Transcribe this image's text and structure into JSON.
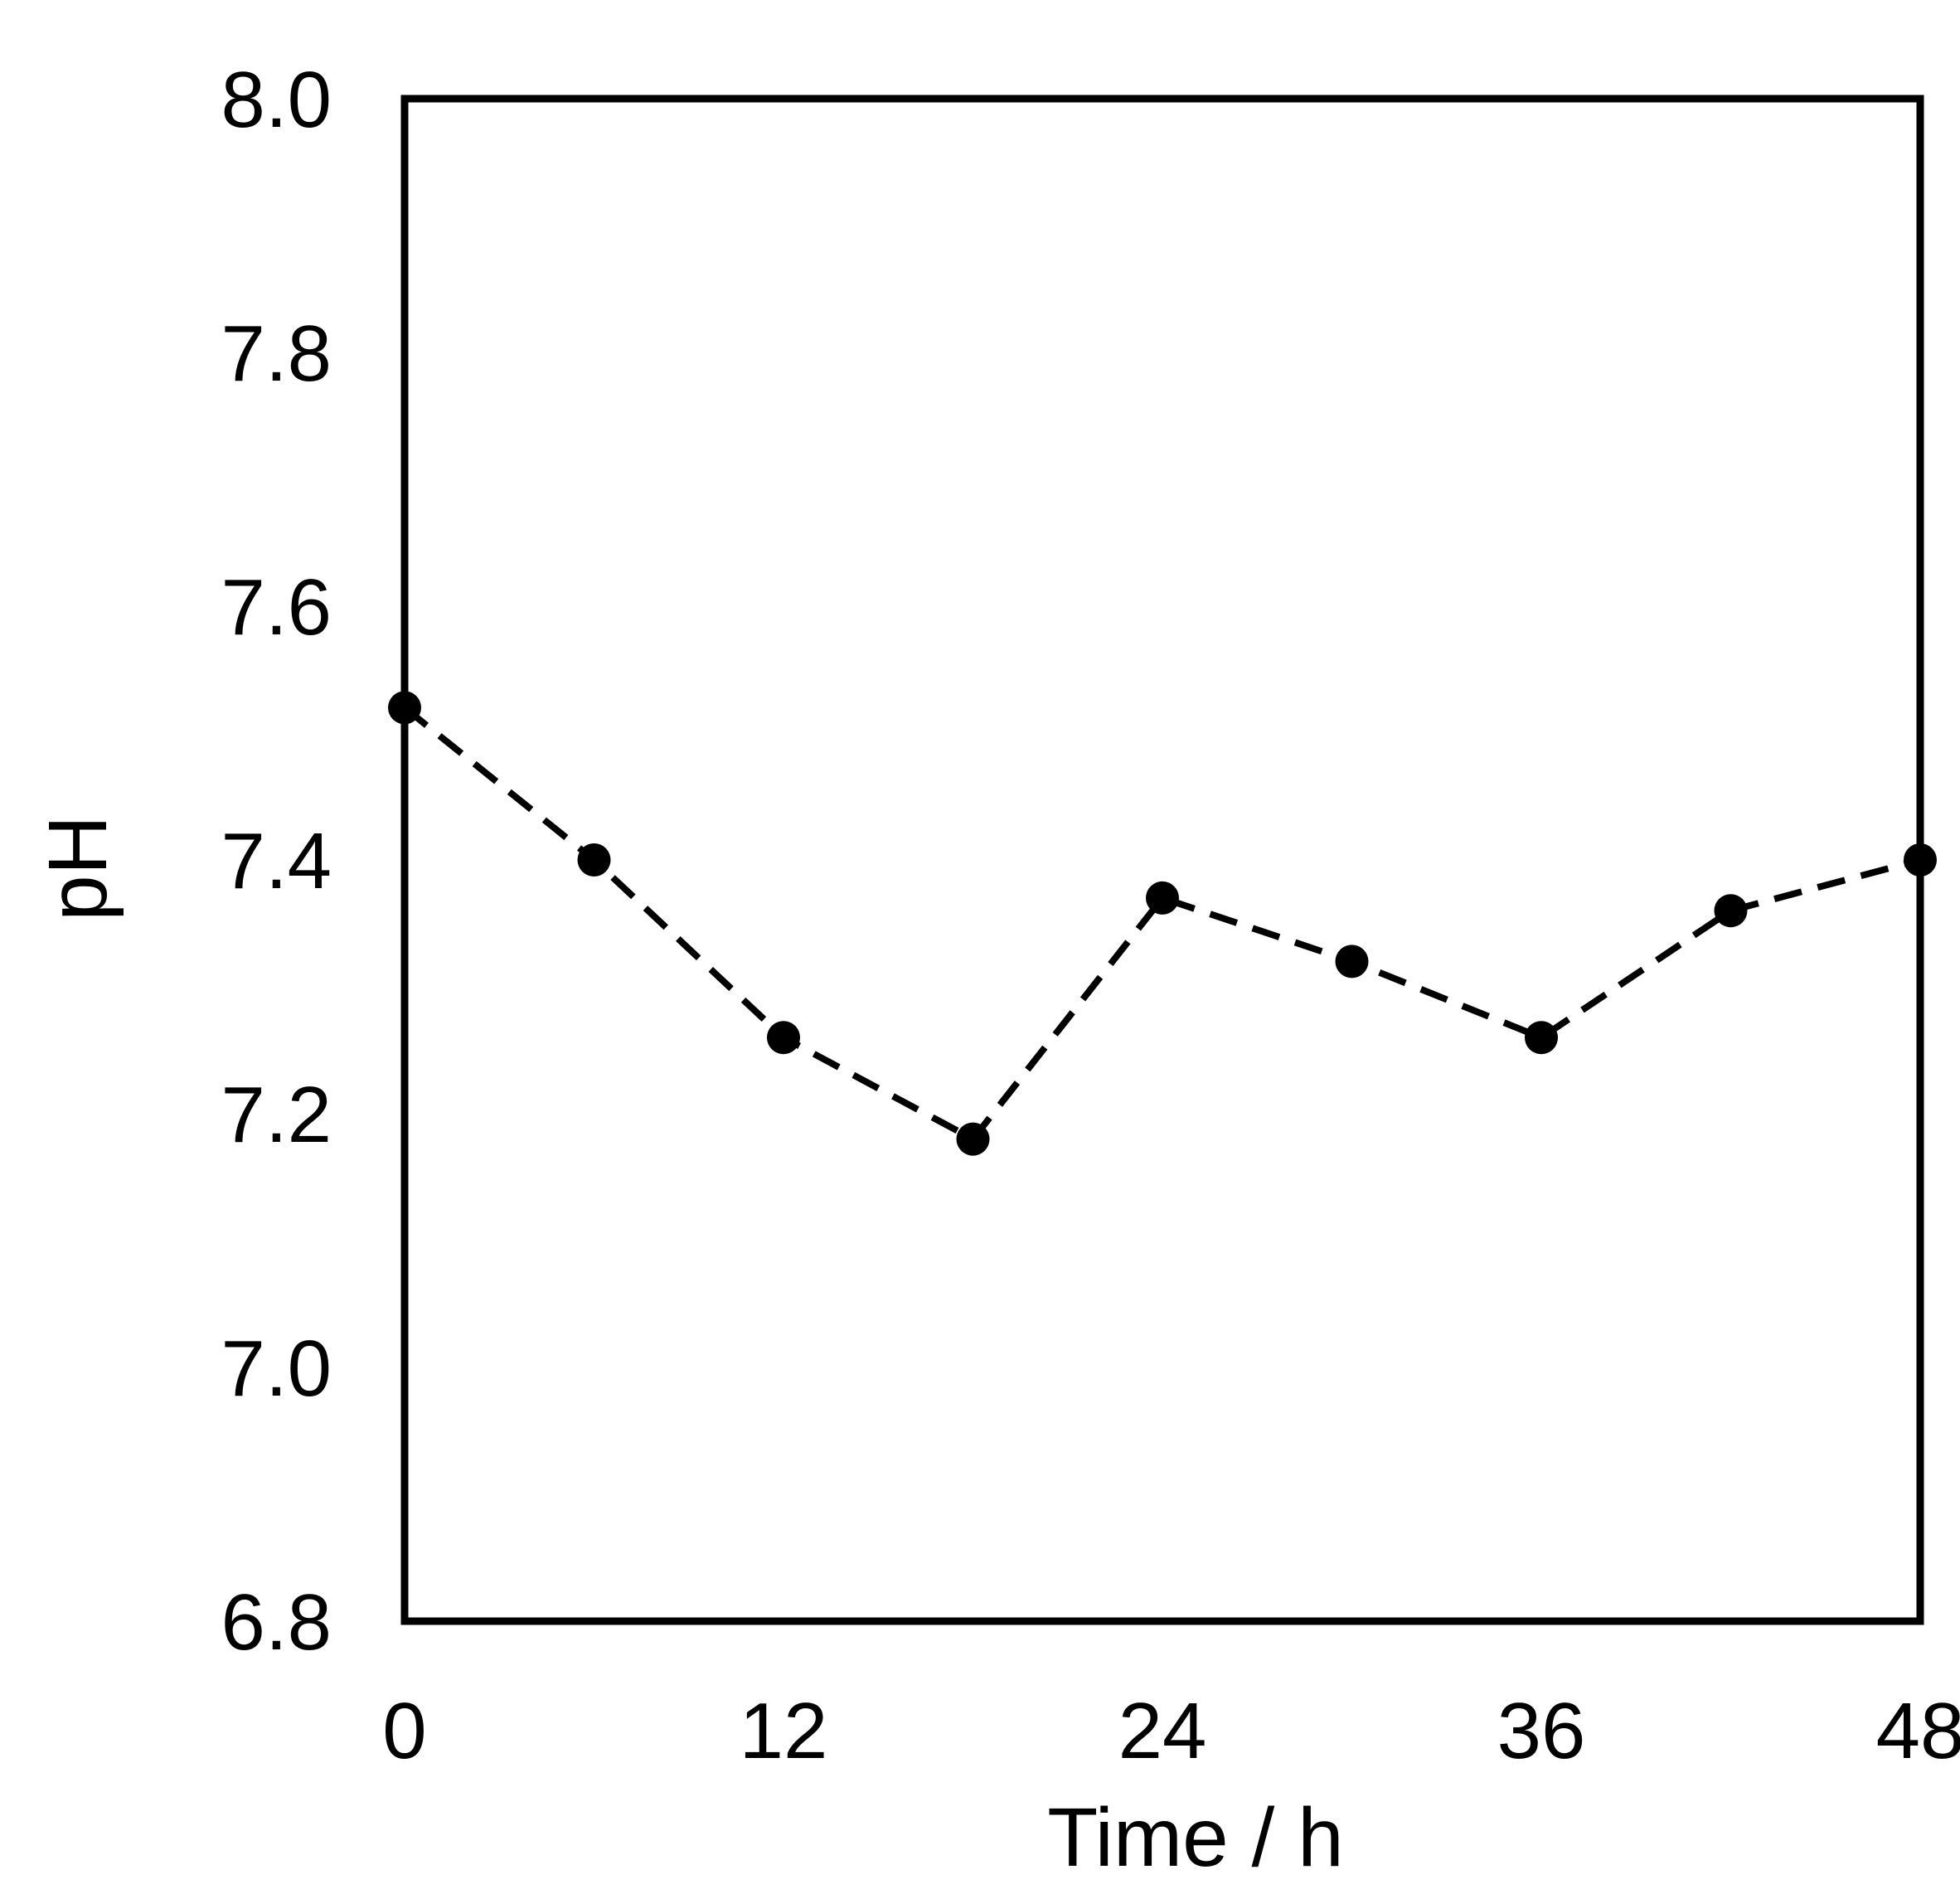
{
  "chart_data": {
    "type": "line",
    "title": "",
    "xlabel": "Time / h",
    "ylabel": "pH",
    "xlim": [
      0,
      48
    ],
    "ylim": [
      6.8,
      8.0
    ],
    "x_ticks": [
      "0",
      "12",
      "24",
      "36",
      "48"
    ],
    "y_ticks": [
      "6.8",
      "7.0",
      "7.2",
      "7.4",
      "7.6",
      "7.8",
      "8.0"
    ],
    "grid": false,
    "legend": "none",
    "line_style": "dashed",
    "marker": "filled-circle",
    "color": "#000000",
    "series": [
      {
        "x": [
          0,
          6,
          12,
          18,
          24,
          30,
          36,
          42,
          48
        ],
        "y": [
          7.52,
          7.4,
          7.26,
          7.18,
          7.37,
          7.32,
          7.26,
          7.36,
          7.4
        ]
      }
    ]
  }
}
